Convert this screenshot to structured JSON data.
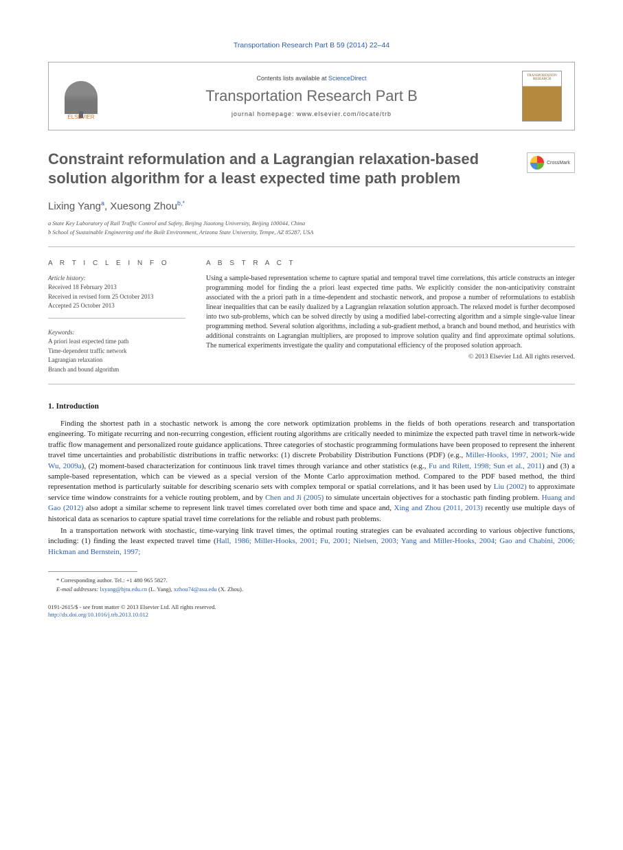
{
  "journal_ref": "Transportation Research Part B 59 (2014) 22–44",
  "header": {
    "contents_prefix": "Contents lists available at ",
    "contents_link": "ScienceDirect",
    "journal_title": "Transportation Research Part B",
    "homepage_prefix": "journal homepage: ",
    "homepage_url": "www.elsevier.com/locate/trb",
    "elsevier_label": "ELSEVIER",
    "cover_text": "TRANSPORTATION RESEARCH"
  },
  "crossmark_label": "CrossMark",
  "title": "Constraint reformulation and a Lagrangian relaxation-based solution algorithm for a least expected time path problem",
  "authors": [
    {
      "name": "Lixing Yang",
      "sup": "a"
    },
    {
      "name": "Xuesong Zhou",
      "sup": "b,*"
    }
  ],
  "affiliations": [
    "a State Key Laboratory of Rail Traffic Control and Safety, Beijing Jiaotong University, Beijing 100044, China",
    "b School of Sustainable Engineering and the Built Environment, Arizona State University, Tempe, AZ 85287, USA"
  ],
  "article_info": {
    "label": "A R T I C L E   I N F O",
    "history_title": "Article history:",
    "history": [
      "Received 18 February 2013",
      "Received in revised form 25 October 2013",
      "Accepted 25 October 2013"
    ],
    "keywords_title": "Keywords:",
    "keywords": [
      "A priori least expected time path",
      "Time-dependent traffic network",
      "Lagrangian relaxation",
      "Branch and bound algorithm"
    ]
  },
  "abstract": {
    "label": "A B S T R A C T",
    "text": "Using a sample-based representation scheme to capture spatial and temporal travel time correlations, this article constructs an integer programming model for finding the a priori least expected time paths. We explicitly consider the non-anticipativity constraint associated with the a priori path in a time-dependent and stochastic network, and propose a number of reformulations to establish linear inequalities that can be easily dualized by a Lagrangian relaxation solution approach. The relaxed model is further decomposed into two sub-problems, which can be solved directly by using a modified label-correcting algorithm and a simple single-value linear programming method. Several solution algorithms, including a sub-gradient method, a branch and bound method, and heuristics with additional constraints on Lagrangian multipliers, are proposed to improve solution quality and find approximate optimal solutions. The numerical experiments investigate the quality and computational efficiency of the proposed solution approach.",
    "copyright": "© 2013 Elsevier Ltd. All rights reserved."
  },
  "section1_title": "1. Introduction",
  "para1": {
    "t1": "Finding the shortest path in a stochastic network is among the core network optimization problems in the fields of both operations research and transportation engineering. To mitigate recurring and non-recurring congestion, efficient routing algorithms are critically needed to minimize the expected path travel time in network-wide traffic flow management and personalized route guidance applications. Three categories of stochastic programming formulations have been proposed to represent the inherent travel time uncertainties and probabilistic distributions in traffic networks: (1) discrete Probability Distribution Functions (PDF) (e.g., ",
    "c1": "Miller-Hooks, 1997, 2001; Nie and Wu, 2009a",
    "t2": "), (2) moment-based characterization for continuous link travel times through variance and other statistics (e.g., ",
    "c2": "Fu and Rilett, 1998; Sun et al., 2011",
    "t3": ") and (3) a sample-based representation, which can be viewed as a special version of the Monte Carlo approximation method. Compared to the PDF based method, the third representation method is particularly suitable for describing scenario sets with complex temporal or spatial correlations, and it has been used by ",
    "c3": "Liu (2002)",
    "t4": " to approximate service time window constraints for a vehicle routing problem, and by ",
    "c4": "Chen and Ji (2005)",
    "t5": " to simulate uncertain objectives for a stochastic path finding problem. ",
    "c5": "Huang and Gao (2012)",
    "t6": " also adopt a similar scheme to represent link travel times correlated over both time and space and, ",
    "c6": "Xing and Zhou (2011, 2013)",
    "t7": " recently use multiple days of historical data as scenarios to capture spatial travel time correlations for the reliable and robust path problems."
  },
  "para2": {
    "t1": "In a transportation network with stochastic, time-varying link travel times, the optimal routing strategies can be evaluated according to various objective functions, including: (1) finding the least expected travel time (",
    "c1": "Hall, 1986; Miller-Hooks, 2001; Fu, 2001; Nielsen, 2003; Yang and Miller-Hooks, 2004; Gao and Chabini, 2006; Hickman and Bernstein, 1997;"
  },
  "footnotes": {
    "corr": "* Corresponding author. Tel.: +1 480 965 5827.",
    "email_label": "E-mail addresses: ",
    "email1": "lxyang@bjtu.edu.cn",
    "email1_name": " (L. Yang), ",
    "email2": "xzhou74@asu.edu",
    "email2_name": " (X. Zhou)."
  },
  "footer": {
    "issn": "0191-2615/$ - see front matter © 2013 Elsevier Ltd. All rights reserved.",
    "doi": "http://dx.doi.org/10.1016/j.trb.2013.10.012"
  },
  "colors": {
    "link": "#2a5db0",
    "elsevier_orange": "#e5711e",
    "title_gray": "#5b5b5b"
  }
}
